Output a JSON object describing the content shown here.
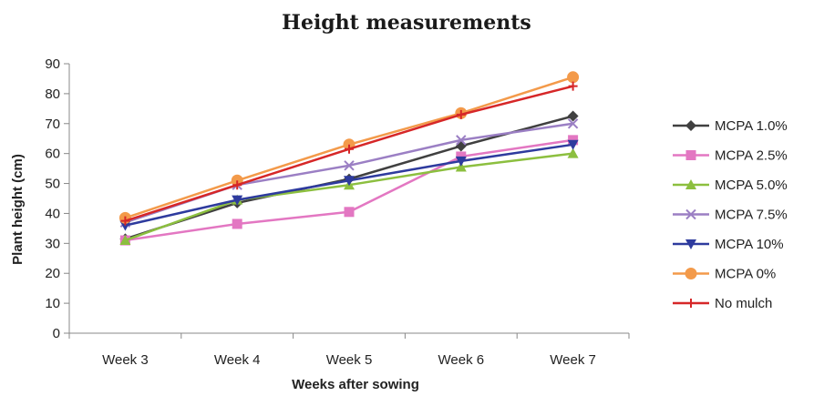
{
  "chart_data": {
    "type": "line",
    "title": "Height measurements",
    "xlabel": "Weeks after sowing",
    "ylabel": "Plant height (cm)",
    "categories": [
      "Week 3",
      "Week 4",
      "Week 5",
      "Week 6",
      "Week 7"
    ],
    "ylim": [
      0,
      90
    ],
    "yticks": [
      0,
      10,
      20,
      30,
      40,
      50,
      60,
      70,
      80,
      90
    ],
    "grid": false,
    "legend_position": "right",
    "series": [
      {
        "name": "MCPA  1.0%",
        "values": [
          31.5,
          43.5,
          51.5,
          62.5,
          72.5
        ],
        "color": "#404040",
        "marker": "diamond"
      },
      {
        "name": "MCPA 2.5%",
        "values": [
          31,
          36.5,
          40.5,
          59,
          64.5
        ],
        "color": "#e377c2",
        "marker": "square"
      },
      {
        "name": "MCPA  5.0%",
        "values": [
          31,
          44.5,
          49.5,
          55.5,
          60
        ],
        "color": "#8cbf3f",
        "marker": "triangle"
      },
      {
        "name": "MCPA  7.5%",
        "values": [
          37,
          49.5,
          56,
          64.5,
          70
        ],
        "color": "#9b7fc4",
        "marker": "x"
      },
      {
        "name": "MCPA  10%",
        "values": [
          36,
          44.5,
          51,
          57.5,
          63
        ],
        "color": "#2e3b9e",
        "marker": "triangle-down"
      },
      {
        "name": " MCPA 0%",
        "values": [
          38.5,
          51,
          63,
          73.5,
          85.5
        ],
        "color": "#f39a4a",
        "marker": "circle"
      },
      {
        "name": "No mulch",
        "values": [
          37.5,
          49.5,
          61.5,
          73,
          82.5
        ],
        "color": "#d62728",
        "marker": "plus"
      }
    ]
  }
}
